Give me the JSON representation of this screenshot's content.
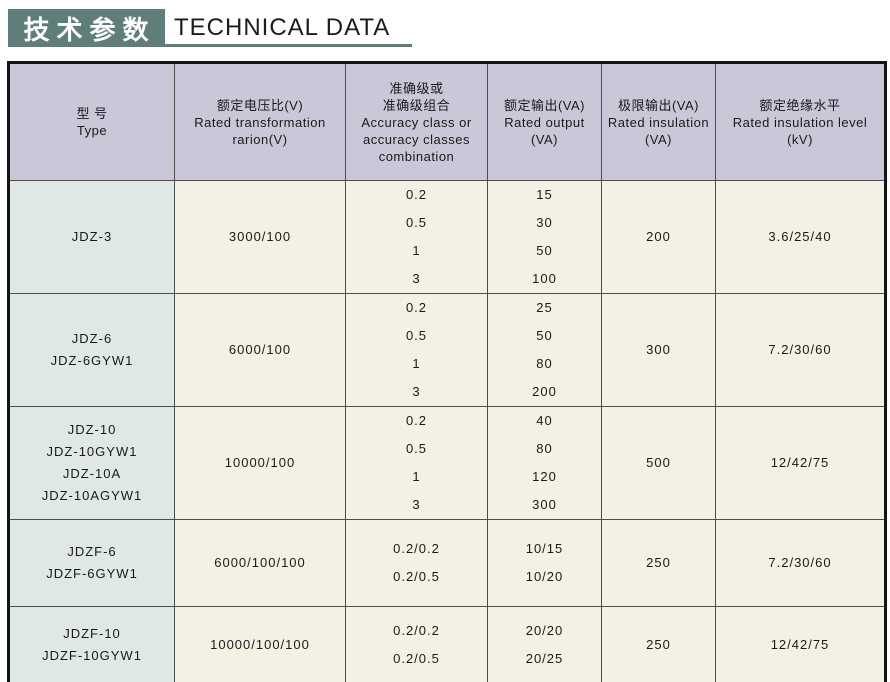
{
  "header": {
    "title_zh": "技术参数",
    "title_en": "TECHNICAL DATA"
  },
  "colors": {
    "title_bg": "#5f7d79",
    "underline": "#5f7d79",
    "table_header_bg": "#cbc7d8",
    "type_column_bg": "#dfe8e4",
    "data_cell_bg": "#f2f1e4",
    "outer_border": "#141414",
    "inner_border": "#4d4d4d"
  },
  "table": {
    "columns": [
      {
        "id": "type",
        "lines": [
          "型  号",
          "Type"
        ]
      },
      {
        "id": "ratio",
        "lines": [
          "额定电压比(V)",
          "Rated transformation",
          "rarion(V)"
        ]
      },
      {
        "id": "accuracy",
        "lines": [
          "准确级或",
          "准确级组合",
          "Accuracy class or",
          "accuracy classes",
          "combination"
        ]
      },
      {
        "id": "output",
        "lines": [
          "额定输出(VA)",
          "Rated output",
          "(VA)"
        ]
      },
      {
        "id": "limit",
        "lines": [
          "极限输出(VA)",
          "Rated insulation",
          "(VA)"
        ]
      },
      {
        "id": "insulation",
        "lines": [
          "额定绝缘水平",
          "Rated insulation level",
          "(kV)"
        ]
      }
    ],
    "rows": [
      {
        "type": [
          "JDZ-3"
        ],
        "ratio": [
          "3000/100"
        ],
        "accuracy": [
          "0.2",
          "0.5",
          "1",
          "3"
        ],
        "output": [
          "15",
          "30",
          "50",
          "100"
        ],
        "limit": [
          "200"
        ],
        "insulation": [
          "3.6/25/40"
        ]
      },
      {
        "type": [
          "JDZ-6",
          "JDZ-6GYW1"
        ],
        "ratio": [
          "6000/100"
        ],
        "accuracy": [
          "0.2",
          "0.5",
          "1",
          "3"
        ],
        "output": [
          "25",
          "50",
          "80",
          "200"
        ],
        "limit": [
          "300"
        ],
        "insulation": [
          "7.2/30/60"
        ]
      },
      {
        "type": [
          "JDZ-10",
          "JDZ-10GYW1",
          "JDZ-10A",
          "JDZ-10AGYW1"
        ],
        "ratio": [
          "10000/100"
        ],
        "accuracy": [
          "0.2",
          "0.5",
          "1",
          "3"
        ],
        "output": [
          "40",
          "80",
          "120",
          "300"
        ],
        "limit": [
          "500"
        ],
        "insulation": [
          "12/42/75"
        ]
      },
      {
        "type": [
          "JDZF-6",
          "JDZF-6GYW1"
        ],
        "ratio": [
          "6000/100/100"
        ],
        "accuracy": [
          "0.2/0.2",
          "0.2/0.5"
        ],
        "output": [
          "10/15",
          "10/20"
        ],
        "limit": [
          "250"
        ],
        "insulation": [
          "7.2/30/60"
        ]
      },
      {
        "type": [
          "JDZF-10",
          "JDZF-10GYW1"
        ],
        "ratio": [
          "10000/100/100"
        ],
        "accuracy": [
          "0.2/0.2",
          "0.2/0.5"
        ],
        "output": [
          "20/20",
          "20/25"
        ],
        "limit": [
          "250"
        ],
        "insulation": [
          "12/42/75"
        ]
      }
    ]
  }
}
